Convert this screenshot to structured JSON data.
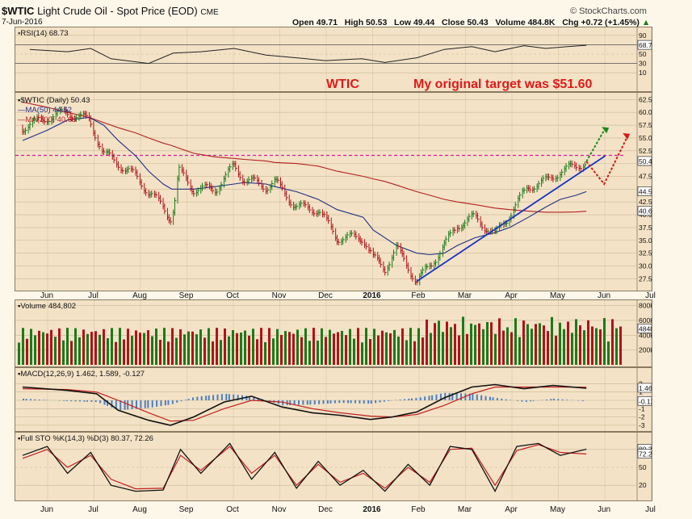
{
  "header": {
    "symbol": "$WTIC",
    "name": "Light Crude Oil - Spot Price (EOD)",
    "exchange": "CME",
    "brand": "© StockCharts.com",
    "date": "7-Jun-2016",
    "ohlc": "Open 49.71   High 50.53   Low 49.44   Close 50.43   Volume 484.8K   Chg +0.72 (+1.45%)",
    "chg_arrow": "▲"
  },
  "annotations": {
    "wtic": "WTIC",
    "target": "My original target was $51.60"
  },
  "colors": {
    "panel_bg": "#f3e2c6",
    "page_bg": "#fdf7ea",
    "up": "#1a7a1a",
    "down": "#b0121a",
    "ma50": "#1f2f8a",
    "ma200": "#b32020",
    "trend": "#1533c8",
    "target": "#d11fa0"
  },
  "chart_data": [
    {
      "type": "line",
      "panel": "RSI",
      "title": "RSI(14) 68.73",
      "ylim": [
        0,
        100
      ],
      "ticks": [
        90,
        70,
        50,
        30,
        10
      ],
      "ref_lines": [
        70,
        30
      ],
      "last": "68.73",
      "x": [
        "2015-05-20",
        "2015-06-15",
        "2015-07-01",
        "2015-07-15",
        "2015-08-10",
        "2015-08-27",
        "2015-09-15",
        "2015-10-08",
        "2015-10-30",
        "2015-11-20",
        "2015-12-10",
        "2016-01-04",
        "2016-01-20",
        "2016-02-11",
        "2016-03-01",
        "2016-03-20",
        "2016-04-05",
        "2016-04-25",
        "2016-05-10",
        "2016-05-25",
        "2016-06-07"
      ],
      "values": [
        60,
        55,
        62,
        40,
        30,
        52,
        55,
        62,
        48,
        42,
        36,
        40,
        32,
        42,
        60,
        66,
        55,
        68,
        62,
        66,
        68.73
      ]
    },
    {
      "type": "line",
      "panel": "price",
      "title": "$WTIC (Daily) 50.43",
      "series_labels": [
        "MA(50) 44.52",
        "MA(200) 40.68"
      ],
      "ylim": [
        25.5,
        63.5
      ],
      "ticks": [
        62.5,
        60.0,
        57.5,
        55.0,
        52.5,
        50.0,
        47.5,
        45.0,
        42.5,
        40.0,
        37.5,
        35.0,
        32.5,
        30.0,
        27.5
      ],
      "last_labels": [
        "50.43",
        "44.52",
        "40.68"
      ],
      "target_level": 51.6,
      "x": [
        "2015-05-15",
        "2015-06-01",
        "2015-06-15",
        "2015-06-30",
        "2015-07-10",
        "2015-07-20",
        "2015-08-01",
        "2015-08-10",
        "2015-08-20",
        "2015-08-26",
        "2015-08-31",
        "2015-09-10",
        "2015-09-25",
        "2015-10-08",
        "2015-10-15",
        "2015-10-30",
        "2015-11-05",
        "2015-11-20",
        "2015-12-05",
        "2015-12-18",
        "2016-01-05",
        "2016-01-12",
        "2016-01-20",
        "2016-01-28",
        "2016-02-11",
        "2016-02-20",
        "2016-03-01",
        "2016-03-10",
        "2016-03-22",
        "2016-04-05",
        "2016-04-15",
        "2016-04-28",
        "2016-05-10",
        "2016-05-20",
        "2016-05-31",
        "2016-06-07"
      ],
      "close": [
        57,
        59,
        60,
        58.5,
        52,
        50,
        47.5,
        44.5,
        41.5,
        39,
        48.5,
        45,
        45,
        49.5,
        47,
        45.5,
        46.5,
        41.5,
        41,
        35.5,
        35.5,
        31.5,
        29.5,
        33.5,
        27,
        30,
        34,
        38,
        39.5,
        36,
        40,
        45.5,
        46.5,
        48.5,
        49.5,
        50.43
      ],
      "ma50": [
        54.5,
        56.5,
        58.5,
        59,
        57.5,
        54.5,
        51.5,
        48.5,
        46,
        45,
        45,
        45,
        45.5,
        46,
        46.3,
        46,
        45.5,
        44.5,
        43,
        41,
        39.5,
        37,
        35.5,
        34,
        32.5,
        32.2,
        32.5,
        34,
        35.5,
        36.5,
        37.5,
        39.5,
        41.5,
        43,
        43.8,
        44.52
      ],
      "ma200": [
        62,
        61,
        60,
        59,
        58,
        57,
        56,
        55,
        54,
        53.5,
        53,
        52,
        51.3,
        51,
        50.8,
        50.5,
        50.2,
        50,
        49.5,
        48.5,
        47.5,
        47,
        46.5,
        45.8,
        44.5,
        43.8,
        43,
        42.5,
        42,
        41.3,
        41,
        40.7,
        40.5,
        40.5,
        40.55,
        40.68
      ],
      "trendline": {
        "x": [
          "2016-02-11",
          "2016-06-20"
        ],
        "y": [
          27,
          51.5
        ]
      }
    },
    {
      "type": "bar",
      "panel": "volume",
      "title": "Volume 484,802",
      "ylim": [
        0,
        850000
      ],
      "ticks": [
        "800K",
        "600K",
        "400K",
        "200K"
      ],
      "last": "484802",
      "bars": 150
    },
    {
      "type": "line",
      "panel": "MACD",
      "title": "MACD(12,26,9) 1.462, 1.589, -0.127",
      "ylim": [
        -3.5,
        3.5
      ],
      "ticks": [
        "2",
        "1",
        "0",
        "-1",
        "-2",
        "-3"
      ],
      "last_labels": [
        "1.462",
        "-0.127"
      ],
      "x": [
        "2015-05-15",
        "2015-06-15",
        "2015-07-05",
        "2015-07-20",
        "2015-08-10",
        "2015-08-25",
        "2015-09-10",
        "2015-10-01",
        "2015-10-20",
        "2015-11-10",
        "2015-12-01",
        "2015-12-20",
        "2016-01-10",
        "2016-01-25",
        "2016-02-11",
        "2016-03-01",
        "2016-03-20",
        "2016-04-05",
        "2016-04-25",
        "2016-05-15",
        "2016-06-07"
      ],
      "macd": [
        1.6,
        1.2,
        0.8,
        -1.2,
        -2.4,
        -3.0,
        -2.0,
        -0.2,
        0.5,
        -0.8,
        -1.5,
        -1.8,
        -2.3,
        -2.0,
        -1.4,
        0.3,
        1.6,
        1.9,
        1.4,
        1.8,
        1.462
      ],
      "signal": [
        1.4,
        1.3,
        1.0,
        0.0,
        -1.5,
        -2.5,
        -2.4,
        -1.0,
        0.0,
        -0.2,
        -1.0,
        -1.5,
        -1.9,
        -2.0,
        -1.7,
        -0.6,
        0.8,
        1.6,
        1.6,
        1.6,
        1.589
      ]
    },
    {
      "type": "line",
      "panel": "STO",
      "title": "Full STO %K(14,3) %D(3) 80.37, 72.26",
      "ylim": [
        0,
        100
      ],
      "ticks": [
        80,
        50,
        20
      ],
      "last_labels": [
        "80.37",
        "72.26"
      ],
      "x": [
        "2015-05-15",
        "2015-06-01",
        "2015-06-15",
        "2015-07-01",
        "2015-07-15",
        "2015-08-01",
        "2015-08-20",
        "2015-09-01",
        "2015-09-15",
        "2015-10-05",
        "2015-10-20",
        "2015-11-05",
        "2015-11-20",
        "2015-12-05",
        "2015-12-20",
        "2016-01-05",
        "2016-01-20",
        "2016-02-05",
        "2016-02-20",
        "2016-03-05",
        "2016-03-20",
        "2016-04-05",
        "2016-04-20",
        "2016-05-05",
        "2016-05-20",
        "2016-06-07"
      ],
      "k": [
        70,
        85,
        40,
        75,
        20,
        10,
        12,
        80,
        40,
        90,
        30,
        75,
        15,
        60,
        20,
        45,
        10,
        55,
        20,
        85,
        80,
        10,
        85,
        90,
        70,
        80.37
      ],
      "d": [
        65,
        80,
        50,
        70,
        30,
        14,
        15,
        70,
        45,
        85,
        40,
        70,
        20,
        55,
        25,
        40,
        15,
        50,
        25,
        80,
        82,
        20,
        78,
        88,
        75,
        72.26
      ]
    }
  ],
  "x_axis": {
    "labels": [
      "Jun",
      "Jul",
      "Aug",
      "Sep",
      "Oct",
      "Nov",
      "Dec",
      "2016",
      "Feb",
      "Mar",
      "Apr",
      "May",
      "Jun",
      "Jul"
    ],
    "range": [
      "2015-05-10",
      "2016-07-12"
    ]
  }
}
